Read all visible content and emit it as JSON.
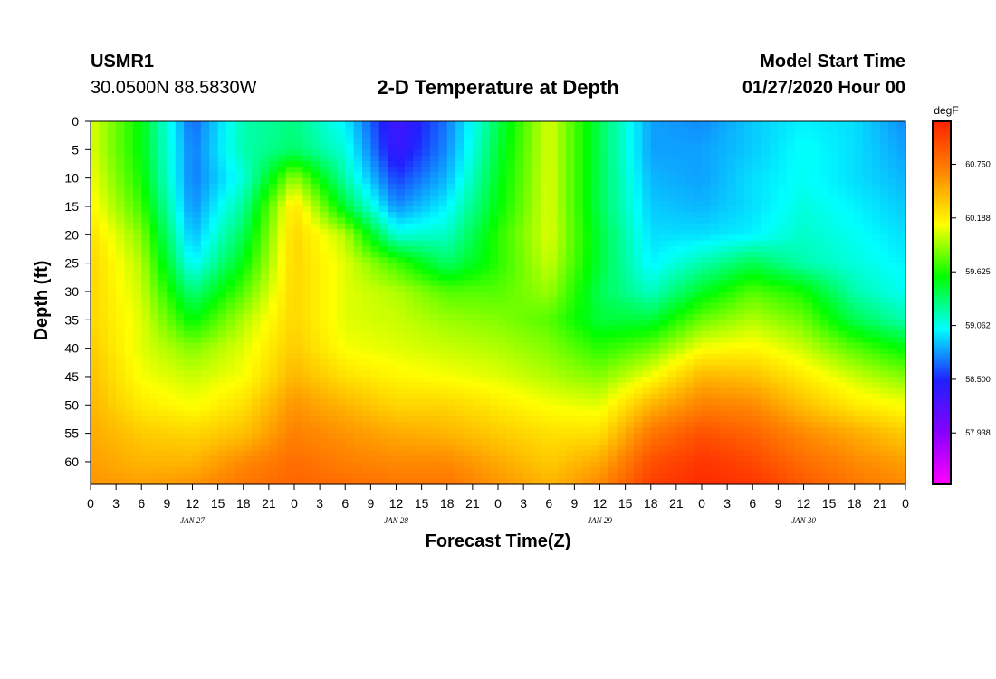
{
  "header": {
    "station": "USMR1",
    "coordinates": "30.0500N 88.5830W",
    "title": "2-D Temperature at Depth",
    "model_start_label": "Model Start Time",
    "model_start_value": "01/27/2020 Hour 00"
  },
  "colors": {
    "scale": [
      "#ff00ff",
      "#8800ff",
      "#2020ff",
      "#00ffff",
      "#00ff00",
      "#ffff00",
      "#ff8800",
      "#ff2200"
    ]
  },
  "chart_data": {
    "type": "heatmap",
    "title": "2-D Temperature at Depth",
    "xlabel": "Forecast Time(Z)",
    "ylabel": "Depth (ft)",
    "x_unit": "hours since model start",
    "xlim": [
      0,
      96
    ],
    "ylim": [
      0,
      64
    ],
    "y_inverted": true,
    "x_tick_labels": [
      "0",
      "3",
      "6",
      "9",
      "12",
      "15",
      "18",
      "21",
      "0",
      "3",
      "6",
      "9",
      "12",
      "15",
      "18",
      "21",
      "0",
      "3",
      "6",
      "9",
      "12",
      "15",
      "18",
      "21",
      "0",
      "3",
      "6",
      "9",
      "12",
      "15",
      "18",
      "21",
      "0"
    ],
    "date_labels": [
      "JAN 27",
      "JAN 28",
      "JAN 29",
      "JAN 30"
    ],
    "y_tick_labels": [
      "0",
      "5",
      "10",
      "15",
      "20",
      "25",
      "30",
      "35",
      "40",
      "45",
      "50",
      "55",
      "60"
    ],
    "y_ticks": [
      0,
      5,
      10,
      15,
      20,
      25,
      30,
      35,
      40,
      45,
      50,
      55,
      60
    ],
    "colorbar": {
      "unit": "degF",
      "range": [
        57.4,
        61.2
      ],
      "tick_values": [
        57.938,
        58.5,
        59.062,
        59.625,
        60.188,
        60.75
      ],
      "tick_labels": [
        "57.938",
        "58.500",
        "59.062",
        "59.625",
        "60.188",
        "60.750"
      ]
    },
    "z_unit": "degF",
    "x_hours": [
      0,
      6,
      12,
      18,
      24,
      30,
      36,
      42,
      48,
      54,
      60,
      66,
      72,
      78,
      84,
      90,
      96
    ],
    "depths_ft": [
      0,
      5,
      10,
      15,
      20,
      25,
      30,
      35,
      40,
      45,
      50,
      55,
      60,
      64
    ],
    "z": [
      [
        60.05,
        59.55,
        58.65,
        59.2,
        59.3,
        59.0,
        58.3,
        58.7,
        59.4,
        60.05,
        59.4,
        58.8,
        58.75,
        58.9,
        59.0,
        58.95,
        58.75
      ],
      [
        60.05,
        59.55,
        58.7,
        59.2,
        59.35,
        59.1,
        58.35,
        58.75,
        59.45,
        60.05,
        59.4,
        58.8,
        58.8,
        58.9,
        59.05,
        58.95,
        58.8
      ],
      [
        60.1,
        59.6,
        58.7,
        59.1,
        59.9,
        59.2,
        58.55,
        58.85,
        59.5,
        60.05,
        59.4,
        58.85,
        58.8,
        58.95,
        59.05,
        58.95,
        58.85
      ],
      [
        60.15,
        59.7,
        58.75,
        59.25,
        60.25,
        59.45,
        58.75,
        59.0,
        59.55,
        60.05,
        59.4,
        58.9,
        58.85,
        58.95,
        59.1,
        59.0,
        58.9
      ],
      [
        60.25,
        59.85,
        58.85,
        59.4,
        60.3,
        59.95,
        59.1,
        59.15,
        59.65,
        60.05,
        59.45,
        58.95,
        58.95,
        59.0,
        59.15,
        59.05,
        58.95
      ],
      [
        60.3,
        59.95,
        59.0,
        59.55,
        60.3,
        60.05,
        59.7,
        59.35,
        59.65,
        60.0,
        59.45,
        59.0,
        59.2,
        59.4,
        59.2,
        59.1,
        59.0
      ],
      [
        60.3,
        60.0,
        59.3,
        59.75,
        60.3,
        60.05,
        59.95,
        59.75,
        59.75,
        59.9,
        59.4,
        59.15,
        59.5,
        59.75,
        59.6,
        59.2,
        59.05
      ],
      [
        60.3,
        60.05,
        59.55,
        59.95,
        60.3,
        60.05,
        60.0,
        59.9,
        59.85,
        59.75,
        59.45,
        59.45,
        59.8,
        59.95,
        59.8,
        59.4,
        59.2
      ],
      [
        60.35,
        60.05,
        59.85,
        60.05,
        60.35,
        60.1,
        60.05,
        60.0,
        59.95,
        59.85,
        59.65,
        59.8,
        60.1,
        60.15,
        60.0,
        59.75,
        59.55
      ],
      [
        60.4,
        60.1,
        60.0,
        60.1,
        60.45,
        60.25,
        60.15,
        60.1,
        60.05,
        59.95,
        59.85,
        60.1,
        60.45,
        60.4,
        60.2,
        60.0,
        59.85
      ],
      [
        60.45,
        60.2,
        60.1,
        60.25,
        60.6,
        60.45,
        60.3,
        60.3,
        60.2,
        60.1,
        60.05,
        60.45,
        60.7,
        60.65,
        60.4,
        60.2,
        60.1
      ],
      [
        60.5,
        60.35,
        60.3,
        60.4,
        60.7,
        60.6,
        60.5,
        60.45,
        60.35,
        60.25,
        60.25,
        60.75,
        60.95,
        60.85,
        60.65,
        60.5,
        60.35
      ],
      [
        60.55,
        60.45,
        60.45,
        60.65,
        60.8,
        60.7,
        60.65,
        60.65,
        60.5,
        60.35,
        60.5,
        60.95,
        61.1,
        61.0,
        60.8,
        60.65,
        60.55
      ],
      [
        60.6,
        60.55,
        60.6,
        60.75,
        60.85,
        60.8,
        60.75,
        60.75,
        60.6,
        60.45,
        60.65,
        61.05,
        61.15,
        61.1,
        60.9,
        60.75,
        60.65
      ]
    ]
  }
}
